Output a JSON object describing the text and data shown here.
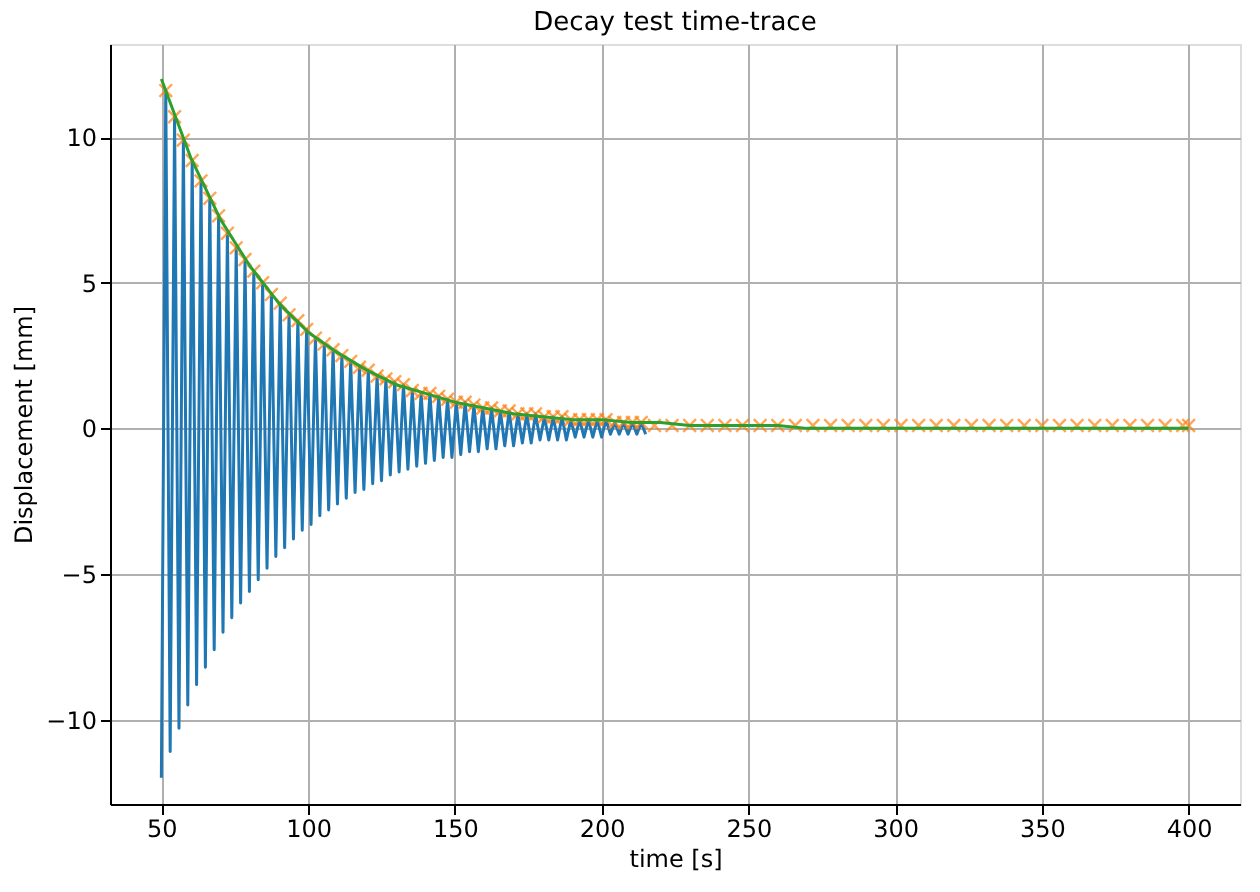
{
  "chart_data": {
    "type": "line",
    "title": "Decay test time-trace",
    "xlabel": "time [s]",
    "ylabel": "Displacement [mm]",
    "xlim": [
      32.5,
      417.5
    ],
    "ylim": [
      -12.9,
      13.2
    ],
    "xticks": [
      50,
      100,
      150,
      200,
      250,
      300,
      350,
      400
    ],
    "yticks": [
      -10,
      -5,
      0,
      5,
      10
    ],
    "grid": true,
    "line_style": "solid",
    "series": [
      {
        "color": "#1f77b4",
        "x": [
          50,
          51.5,
          53,
          54.5,
          56,
          57.5,
          59,
          60.5,
          62,
          63.5,
          65,
          66.5,
          68,
          69.5,
          71,
          72.5,
          74,
          75.5,
          77,
          78.5,
          80,
          81.5,
          83,
          84.5,
          86,
          87.5,
          89,
          90.5,
          92,
          93.5,
          95,
          96.5,
          98,
          99.5,
          101,
          102.5,
          104,
          105.5,
          107,
          108.5,
          110,
          111.5,
          113,
          114.5,
          116,
          117.5,
          119,
          120.5,
          122,
          123.5,
          125,
          126.5,
          128,
          129.5,
          131,
          132.5,
          134,
          135.5,
          137,
          138.5,
          140,
          141.5,
          143,
          144.5,
          146,
          147.5,
          149,
          150.5,
          152,
          153.5,
          155,
          156.5,
          158,
          159.5,
          161,
          162.5,
          164,
          165.5,
          167,
          168.5,
          170,
          171.5,
          173,
          174.5,
          176,
          177.5,
          179,
          180.5,
          182,
          183.5,
          185,
          186.5,
          188,
          189.5,
          191,
          192.5,
          194,
          195.5,
          197,
          198.5,
          200,
          201.5,
          203,
          204.5,
          206,
          207.5,
          209,
          210.5,
          212,
          213.5,
          215
        ],
        "values": [
          -12.0,
          11.6,
          -11.1,
          10.7,
          -10.3,
          9.9,
          -9.5,
          9.2,
          -8.8,
          8.5,
          -8.2,
          7.9,
          -7.6,
          7.3,
          -7.0,
          6.7,
          -6.5,
          6.2,
          -6.0,
          5.8,
          -5.6,
          5.4,
          -5.2,
          5.0,
          -4.8,
          4.6,
          -4.4,
          4.3,
          -4.1,
          3.9,
          -3.8,
          3.7,
          -3.5,
          3.4,
          -3.3,
          3.1,
          -3.0,
          2.9,
          -2.8,
          2.7,
          -2.6,
          2.5,
          -2.4,
          2.3,
          -2.2,
          2.1,
          -2.1,
          2.0,
          -1.9,
          1.8,
          -1.8,
          1.7,
          -1.6,
          1.6,
          -1.5,
          1.5,
          -1.4,
          1.3,
          -1.3,
          1.2,
          -1.2,
          1.2,
          -1.1,
          1.1,
          -1.0,
          1.0,
          -1.0,
          0.9,
          -0.9,
          0.9,
          -0.8,
          0.8,
          -0.8,
          0.7,
          -0.7,
          0.7,
          -0.7,
          0.6,
          -0.6,
          0.6,
          -0.6,
          0.5,
          -0.5,
          0.5,
          -0.5,
          0.5,
          -0.4,
          0.4,
          -0.4,
          0.4,
          -0.4,
          0.4,
          -0.4,
          0.3,
          -0.3,
          0.3,
          -0.3,
          0.3,
          -0.3,
          0.3,
          -0.3,
          0.3,
          -0.2,
          0.2,
          -0.2,
          0.2,
          -0.2,
          0.2,
          -0.2,
          0.2,
          -0.2
        ]
      },
      {
        "type": "scatter",
        "marker": "cross",
        "color": "#ff7f0e",
        "x": [
          51.5,
          54.5,
          57.5,
          60.5,
          63.5,
          66.5,
          69.5,
          72.5,
          75.5,
          78.5,
          81.5,
          84.5,
          87.5,
          90.5,
          93.5,
          96.5,
          99.5,
          102.5,
          105.5,
          108.5,
          111.5,
          114.5,
          117.5,
          120.5,
          123.5,
          126.5,
          129.5,
          132.5,
          135.5,
          138.5,
          141.5,
          144.5,
          147.5,
          150.5,
          153.5,
          156.5,
          159.5,
          162.5,
          165.5,
          168.5,
          171.5,
          174.5,
          177.5,
          180.5,
          183.5,
          186.5,
          189.5,
          192.5,
          195.5,
          198.5,
          201.5,
          204.5,
          207.5,
          210.5,
          213.5,
          218,
          224,
          230,
          236,
          242,
          248,
          254,
          260,
          266,
          272,
          278,
          284,
          290,
          296,
          302,
          308,
          314,
          320,
          326,
          332,
          338,
          344,
          350,
          356,
          362,
          368,
          374,
          380,
          386,
          392,
          398,
          400
        ],
        "values": [
          11.6,
          10.7,
          9.9,
          9.2,
          8.5,
          7.9,
          7.3,
          6.7,
          6.2,
          5.8,
          5.4,
          5.0,
          4.6,
          4.3,
          3.9,
          3.7,
          3.4,
          3.1,
          2.9,
          2.7,
          2.5,
          2.3,
          2.1,
          2.0,
          1.8,
          1.7,
          1.6,
          1.5,
          1.3,
          1.2,
          1.2,
          1.1,
          1.0,
          0.9,
          0.9,
          0.8,
          0.7,
          0.7,
          0.6,
          0.6,
          0.5,
          0.5,
          0.5,
          0.4,
          0.4,
          0.4,
          0.3,
          0.3,
          0.3,
          0.3,
          0.3,
          0.2,
          0.2,
          0.2,
          0.2,
          0.1,
          0.1,
          0.1,
          0.1,
          0.1,
          0.1,
          0.1,
          0.1,
          0.1,
          0.1,
          0.1,
          0.1,
          0.1,
          0.1,
          0.1,
          0.1,
          0.1,
          0.1,
          0.1,
          0.1,
          0.1,
          0.1,
          0.1,
          0.1,
          0.1,
          0.1,
          0.1,
          0.1,
          0.1,
          0.1,
          0.1,
          0.1
        ]
      },
      {
        "color": "#2ca02c",
        "x": [
          50,
          60,
          70,
          80,
          90,
          100,
          110,
          120,
          130,
          140,
          150,
          160,
          170,
          180,
          190,
          200,
          210,
          220,
          230,
          240,
          250,
          260,
          270,
          280,
          290,
          300,
          310,
          320,
          330,
          340,
          350,
          360,
          370,
          380,
          390,
          400
        ],
        "values": [
          12.0,
          9.3,
          7.2,
          5.6,
          4.3,
          3.3,
          2.6,
          2.0,
          1.5,
          1.2,
          0.9,
          0.7,
          0.5,
          0.4,
          0.3,
          0.3,
          0.2,
          0.2,
          0.1,
          0.1,
          0.1,
          0.1,
          0.0,
          0.0,
          0.0,
          0.0,
          0.0,
          0.0,
          0.0,
          0.0,
          0.0,
          0.0,
          0.0,
          0.0,
          0.0,
          0.0
        ]
      }
    ]
  }
}
